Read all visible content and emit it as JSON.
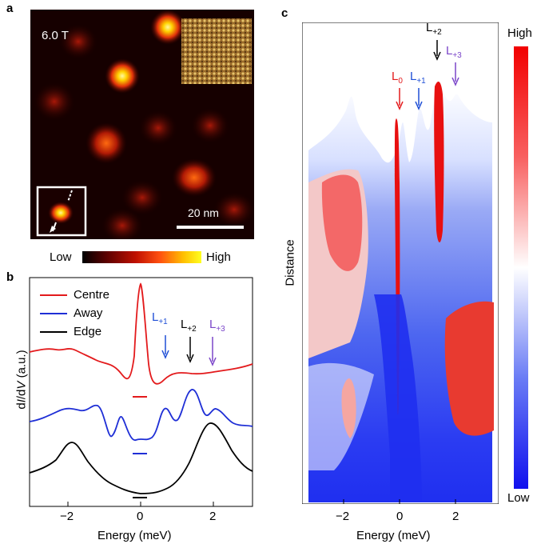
{
  "panel_a": {
    "label": "a",
    "field": "6.0 T",
    "scale_bar": "20 nm",
    "colorbar_low": "Low",
    "colorbar_high": "High"
  },
  "panel_b": {
    "label": "b",
    "ylabel_prefix": "d",
    "ylabel_I": "I",
    "ylabel_slash": "/d",
    "ylabel_V": "V",
    "ylabel_suffix": " (a.u.)",
    "xlabel": "Energy (meV)",
    "legend": [
      "Centre",
      "Away",
      "Edge"
    ],
    "colors": {
      "centre": "#e31a1c",
      "away": "#1f2fd6",
      "edge": "#000000",
      "L_plus1": "#1f4fd6",
      "L_plus2": "#000000",
      "L_plus3": "#7b46c9"
    },
    "arrows": [
      {
        "base": "L",
        "sub": "+1"
      },
      {
        "base": "L",
        "sub": "+2"
      },
      {
        "base": "L",
        "sub": "+3"
      }
    ],
    "x_ticks": [
      "−2",
      "0",
      "2"
    ]
  },
  "panel_c": {
    "label": "c",
    "ylabel": "Distance",
    "xlabel": "Energy (meV)",
    "x_ticks": [
      "−2",
      "0",
      "2"
    ],
    "colorbar_high": "High",
    "colorbar_low": "Low",
    "arrows": [
      {
        "base": "L",
        "sub": "0",
        "color": "#e31a1c"
      },
      {
        "base": "L",
        "sub": "+1",
        "color": "#1f4fd6"
      },
      {
        "base": "L",
        "sub": "+2",
        "color": "#000000"
      },
      {
        "base": "L",
        "sub": "+3",
        "color": "#7b46c9"
      }
    ]
  }
}
